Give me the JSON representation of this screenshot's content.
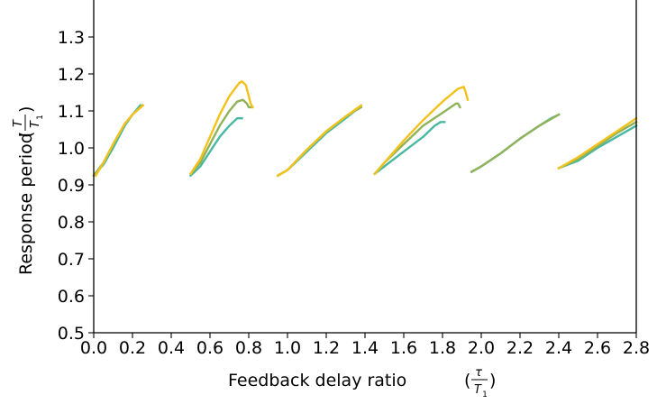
{
  "chart_data": {
    "type": "line",
    "xlabel": "Feedback delay ratio",
    "xlabel_math": {
      "num": "τ",
      "den": "T",
      "den_sub": "1"
    },
    "ylabel": "Response period",
    "ylabel_math": {
      "num": "T",
      "den": "T",
      "den_sub": "1"
    },
    "xlim": [
      0.0,
      2.8
    ],
    "ylim": [
      0.5,
      1.4
    ],
    "xticks": [
      "0.0",
      "0.2",
      "0.4",
      "0.6",
      "0.8",
      "1.0",
      "1.2",
      "1.4",
      "1.6",
      "1.8",
      "2.0",
      "2.2",
      "2.4",
      "2.6",
      "2.8"
    ],
    "yticks": [
      "0.5",
      "0.6",
      "0.7",
      "0.8",
      "0.9",
      "1.0",
      "1.1",
      "1.2",
      "1.3"
    ],
    "grid": false,
    "series": [
      {
        "color": "#4ab8a1",
        "segments": [
          [
            [
              0.0,
              0.925
            ],
            [
              0.05,
              0.955
            ],
            [
              0.1,
              1.0
            ],
            [
              0.16,
              1.06
            ],
            [
              0.2,
              1.09
            ],
            [
              0.24,
              1.115
            ]
          ],
          [
            [
              0.5,
              0.925
            ],
            [
              0.55,
              0.95
            ],
            [
              0.6,
              0.99
            ],
            [
              0.65,
              1.03
            ],
            [
              0.7,
              1.06
            ],
            [
              0.74,
              1.08
            ],
            [
              0.765,
              1.08
            ]
          ],
          [
            [
              0.95,
              0.925
            ],
            [
              1.0,
              0.94
            ],
            [
              1.1,
              0.99
            ],
            [
              1.2,
              1.04
            ],
            [
              1.3,
              1.08
            ],
            [
              1.37,
              1.11
            ]
          ],
          [
            [
              1.45,
              0.93
            ],
            [
              1.5,
              0.95
            ],
            [
              1.6,
              0.99
            ],
            [
              1.7,
              1.03
            ],
            [
              1.76,
              1.06
            ],
            [
              1.79,
              1.07
            ],
            [
              1.81,
              1.07
            ]
          ],
          [
            [
              1.95,
              0.935
            ],
            [
              2.0,
              0.95
            ],
            [
              2.1,
              0.985
            ],
            [
              2.2,
              1.025
            ],
            [
              2.3,
              1.06
            ],
            [
              2.36,
              1.08
            ],
            [
              2.4,
              1.09
            ]
          ],
          [
            [
              2.4,
              0.945
            ],
            [
              2.5,
              0.965
            ],
            [
              2.6,
              1.0
            ],
            [
              2.7,
              1.03
            ],
            [
              2.8,
              1.06
            ]
          ]
        ]
      },
      {
        "color": "#8fb25a",
        "segments": [
          [
            [
              0.0,
              0.925
            ],
            [
              0.05,
              0.96
            ],
            [
              0.1,
              1.01
            ],
            [
              0.16,
              1.065
            ],
            [
              0.2,
              1.09
            ],
            [
              0.25,
              1.115
            ]
          ],
          [
            [
              0.5,
              0.93
            ],
            [
              0.55,
              0.96
            ],
            [
              0.6,
              1.01
            ],
            [
              0.65,
              1.06
            ],
            [
              0.7,
              1.1
            ],
            [
              0.74,
              1.125
            ],
            [
              0.77,
              1.13
            ],
            [
              0.79,
              1.12
            ],
            [
              0.8,
              1.11
            ],
            [
              0.82,
              1.11
            ]
          ],
          [
            [
              0.95,
              0.925
            ],
            [
              1.0,
              0.94
            ],
            [
              1.1,
              0.995
            ],
            [
              1.2,
              1.045
            ],
            [
              1.3,
              1.085
            ],
            [
              1.38,
              1.11
            ]
          ],
          [
            [
              1.45,
              0.93
            ],
            [
              1.5,
              0.96
            ],
            [
              1.6,
              1.01
            ],
            [
              1.7,
              1.06
            ],
            [
              1.8,
              1.095
            ],
            [
              1.87,
              1.12
            ],
            [
              1.88,
              1.12
            ],
            [
              1.89,
              1.11
            ]
          ],
          [
            [
              1.95,
              0.935
            ],
            [
              2.0,
              0.95
            ],
            [
              2.1,
              0.985
            ],
            [
              2.2,
              1.025
            ],
            [
              2.3,
              1.06
            ],
            [
              2.35,
              1.075
            ],
            [
              2.4,
              1.09
            ]
          ],
          [
            [
              2.4,
              0.945
            ],
            [
              2.5,
              0.97
            ],
            [
              2.6,
              1.005
            ],
            [
              2.7,
              1.04
            ],
            [
              2.8,
              1.07
            ]
          ]
        ]
      },
      {
        "color": "#f2c21b",
        "segments": [
          [
            [
              0.01,
              0.925
            ],
            [
              0.05,
              0.96
            ],
            [
              0.1,
              1.01
            ],
            [
              0.16,
              1.065
            ],
            [
              0.2,
              1.09
            ],
            [
              0.255,
              1.115
            ]
          ],
          [
            [
              0.5,
              0.93
            ],
            [
              0.55,
              0.97
            ],
            [
              0.6,
              1.03
            ],
            [
              0.65,
              1.09
            ],
            [
              0.7,
              1.14
            ],
            [
              0.75,
              1.175
            ],
            [
              0.765,
              1.18
            ],
            [
              0.785,
              1.17
            ],
            [
              0.8,
              1.14
            ],
            [
              0.81,
              1.12
            ],
            [
              0.82,
              1.11
            ]
          ],
          [
            [
              0.95,
              0.925
            ],
            [
              1.0,
              0.94
            ],
            [
              1.1,
              0.995
            ],
            [
              1.2,
              1.045
            ],
            [
              1.3,
              1.085
            ],
            [
              1.38,
              1.115
            ]
          ],
          [
            [
              1.45,
              0.93
            ],
            [
              1.5,
              0.96
            ],
            [
              1.6,
              1.02
            ],
            [
              1.7,
              1.075
            ],
            [
              1.8,
              1.125
            ],
            [
              1.88,
              1.16
            ],
            [
              1.91,
              1.165
            ],
            [
              1.92,
              1.15
            ],
            [
              1.93,
              1.13
            ]
          ],
          [
            [
              2.4,
              0.945
            ],
            [
              2.5,
              0.975
            ],
            [
              2.6,
              1.01
            ],
            [
              2.7,
              1.045
            ],
            [
              2.8,
              1.08
            ]
          ]
        ]
      }
    ]
  }
}
